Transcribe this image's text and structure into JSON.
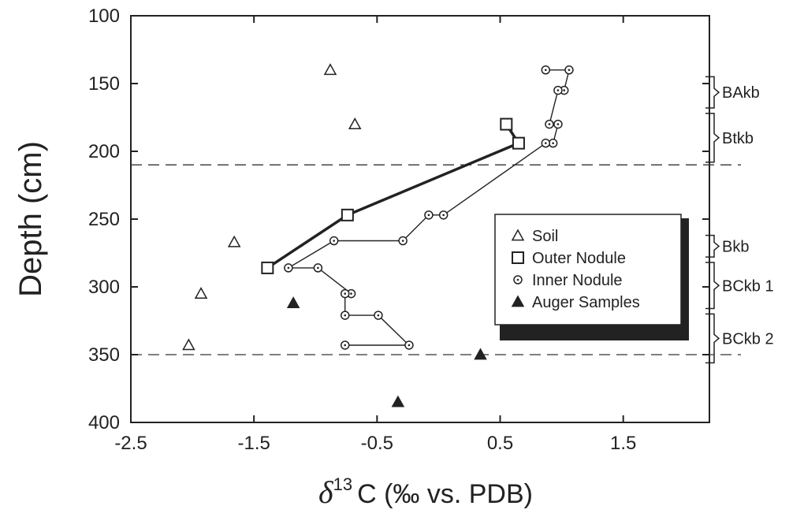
{
  "chart_data": {
    "type": "scatter",
    "xlabel": "δ13C (‰ vs. PDB)",
    "xlabel_parts": {
      "delta": "δ",
      "sup": "13",
      "rest": "C (‰ vs. PDB)"
    },
    "ylabel": "Depth (cm)",
    "xlim": [
      -2.5,
      2.2
    ],
    "ylim": [
      400,
      100
    ],
    "y_inverted": true,
    "xticks": [
      -2.5,
      -1.5,
      -0.5,
      0.5,
      1.5
    ],
    "xtick_labels": [
      "-2.5",
      "-1.5",
      "-0.5",
      "0.5",
      "1.5"
    ],
    "yticks": [
      100,
      150,
      200,
      250,
      300,
      350,
      400
    ],
    "ytick_labels": [
      "100",
      "150",
      "200",
      "250",
      "300",
      "350",
      "400"
    ],
    "grid": false,
    "legend_placement": "middle-right",
    "reference_lines": [
      210,
      350
    ],
    "series": [
      {
        "name": "Soil",
        "marker": "triangle-open",
        "connected": false,
        "points": [
          [
            -0.88,
            140
          ],
          [
            -0.68,
            180
          ],
          [
            -1.66,
            267
          ],
          [
            -1.93,
            305
          ],
          [
            -2.03,
            343
          ]
        ]
      },
      {
        "name": "Outer Nodule",
        "marker": "square-open",
        "connected": true,
        "thick": true,
        "points": [
          [
            0.55,
            180
          ],
          [
            0.65,
            194
          ],
          [
            -0.74,
            247
          ],
          [
            -1.39,
            286
          ]
        ]
      },
      {
        "name": "Inner Nodule",
        "marker": "circle-dot",
        "connected": true,
        "points": [
          [
            0.87,
            140
          ],
          [
            1.06,
            140
          ],
          [
            1.02,
            155
          ],
          [
            0.97,
            155
          ],
          [
            0.9,
            180
          ],
          [
            0.97,
            180
          ],
          [
            0.93,
            194
          ],
          [
            0.87,
            194
          ],
          [
            0.04,
            247
          ],
          [
            -0.08,
            247
          ],
          [
            -0.29,
            266
          ],
          [
            -0.85,
            266
          ],
          [
            -1.22,
            286
          ],
          [
            -0.98,
            286
          ],
          [
            -0.71,
            305
          ],
          [
            -0.76,
            305
          ],
          [
            -0.76,
            321
          ],
          [
            -0.49,
            321
          ],
          [
            -0.24,
            343
          ],
          [
            -0.76,
            343
          ]
        ]
      },
      {
        "name": "Auger Samples",
        "marker": "triangle-filled",
        "connected": false,
        "points": [
          [
            -1.18,
            312
          ],
          [
            0.34,
            350
          ],
          [
            -0.33,
            385
          ]
        ]
      }
    ],
    "horizons": [
      {
        "label": "BAkb",
        "top": 145,
        "bottom": 168
      },
      {
        "label": "Btkb",
        "top": 172,
        "bottom": 208
      },
      {
        "label": "Bkb",
        "top": 262,
        "bottom": 278
      },
      {
        "label": "BCkb 1",
        "top": 282,
        "bottom": 316
      },
      {
        "label": "BCkb 2",
        "top": 320,
        "bottom": 356
      }
    ]
  }
}
